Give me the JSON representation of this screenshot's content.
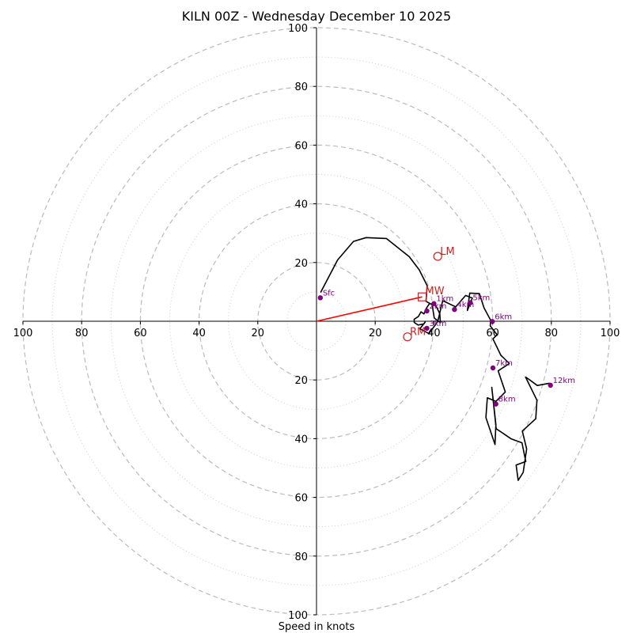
{
  "chart_data": {
    "type": "line",
    "title": "KILN 00Z - Wednesday December 10 2025",
    "xlabel": "Speed in knots",
    "max_speed": 100,
    "ring_major": [
      20,
      40,
      60,
      80,
      100
    ],
    "ring_minor": [
      10,
      30,
      50,
      70,
      90
    ],
    "x_tick_labels": [
      {
        "value": -100,
        "label": "100"
      },
      {
        "value": -80,
        "label": "80"
      },
      {
        "value": -60,
        "label": "60"
      },
      {
        "value": -40,
        "label": "40"
      },
      {
        "value": -20,
        "label": "20"
      },
      {
        "value": 20,
        "label": "20"
      },
      {
        "value": 40,
        "label": "40"
      },
      {
        "value": 60,
        "label": "60"
      },
      {
        "value": 80,
        "label": "80"
      },
      {
        "value": 100,
        "label": "100"
      }
    ],
    "y_tick_labels": [
      {
        "value": 100,
        "label": "100"
      },
      {
        "value": 80,
        "label": "80"
      },
      {
        "value": 60,
        "label": "60"
      },
      {
        "value": 40,
        "label": "40"
      },
      {
        "value": 20,
        "label": "20"
      },
      {
        "value": -20,
        "label": "20"
      },
      {
        "value": -40,
        "label": "40"
      },
      {
        "value": -60,
        "label": "60"
      },
      {
        "value": -80,
        "label": "80"
      },
      {
        "value": -100,
        "label": "100"
      }
    ],
    "hodograph": {
      "color": "#000000",
      "u": [
        1.4,
        7.2,
        12.6,
        16.9,
        23.8,
        31.6,
        35.0,
        37.7,
        37.3,
        39.4,
        40.1,
        42.2,
        42.0,
        40.5,
        38.5,
        37.4,
        36.6,
        35.6,
        34.7,
        33.3,
        33.3,
        34.6,
        36.6,
        37.0,
        35.2,
        38.3,
        41.3,
        43.0,
        47.4,
        50.8,
        53.1,
        51.4,
        52.2,
        55.5,
        57.1,
        59.3,
        59.2,
        61.5,
        60.1,
        62.8,
        65.7,
        61.9,
        64.3,
        61.1,
        58.2,
        57.7,
        60.8,
        61.1,
        60.3,
        59.7,
        61.2,
        66.4,
        70.0,
        71.3,
        68.0,
        68.7,
        70.4,
        71.6,
        70.1,
        74.7,
        75.1,
        71.2,
        72.4,
        75.2,
        79.4
      ],
      "v": [
        9.8,
        20.9,
        27.2,
        28.5,
        28.2,
        22.0,
        17.5,
        12.1,
        6.8,
        5.6,
        1.1,
        -0.5,
        2.6,
        5.6,
        6.0,
        4.4,
        2.5,
        3.2,
        1.6,
        0.7,
        -0.4,
        -1.3,
        -0.9,
        -0.3,
        -2.6,
        -4.2,
        -0.1,
        7.0,
        4.9,
        8.8,
        7.9,
        3.7,
        9.6,
        9.4,
        4.5,
        0.4,
        -1.6,
        -4.6,
        -6.0,
        -11.6,
        -14.4,
        -16.9,
        -24.1,
        -27.3,
        -26.1,
        -32.8,
        -42.0,
        -35.2,
        -27.7,
        -22.5,
        -36.6,
        -40.1,
        -41.4,
        -47.8,
        -49.0,
        -54.2,
        -51.5,
        -43.5,
        -37.4,
        -33.2,
        -26.9,
        -19.0,
        -19.8,
        -21.9,
        -21.1
      ]
    },
    "height_markers": [
      {
        "label": "Sfc",
        "u": 1.3,
        "v": 8.0
      },
      {
        "label": "1km",
        "u": 40.0,
        "v": 6.0
      },
      {
        "label": "2km",
        "u": 37.6,
        "v": 3.5
      },
      {
        "label": "3km",
        "u": 37.6,
        "v": -2.4
      },
      {
        "label": "4km",
        "u": 47.0,
        "v": 4.0
      },
      {
        "label": "5km",
        "u": 52.4,
        "v": 6.3
      },
      {
        "label": "6km",
        "u": 59.9,
        "v": -0.1
      },
      {
        "label": "7km",
        "u": 60.1,
        "v": -15.9
      },
      {
        "label": "8km",
        "u": 61.1,
        "v": -28.2
      },
      {
        "label": "12km",
        "u": 79.7,
        "v": -21.8
      }
    ],
    "marker_color": "#800080",
    "storm_motion": {
      "color": "#cc2222",
      "mean_wind": {
        "label": "MW",
        "u": 36.0,
        "v": 8.3
      },
      "left_mover": {
        "label": "LM",
        "u": 41.3,
        "v": 22.1
      },
      "right_mover": {
        "label": "RM",
        "u": 31.0,
        "v": -5.3
      }
    }
  }
}
